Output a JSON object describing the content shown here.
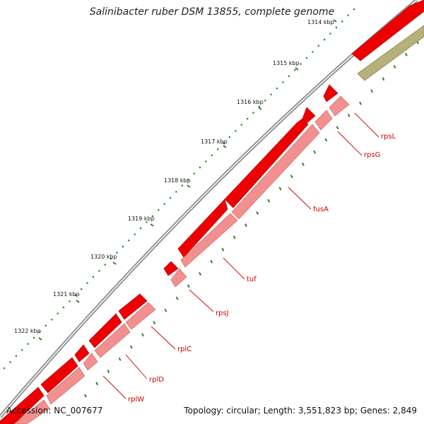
{
  "title": "Salinibacter ruber DSM 13855, complete genome",
  "accession": "Accession: NC_007677",
  "summary": "Topology: circular; Length: 3,551,823 bp; Genes: 2,849",
  "ruler_ticks": [
    "1314 kbp",
    "1315 kbp",
    "1316 kbp",
    "1317 kbp",
    "1318 kbp",
    "1319 kbp",
    "1320 kbp",
    "1321 kbp",
    "1322 kbp"
  ],
  "genes": [
    "rpsL",
    "rpsG",
    "fusA",
    "tuf",
    "rpsJ",
    "rplC",
    "rplD",
    "rplW"
  ],
  "colors": {
    "backbone": "#8a8a8a",
    "cds_forward": "#ee0000",
    "cds_pale": "#f29090",
    "cds_olive": "#b6b07a",
    "ruler_dots": "#1f8a1f",
    "ruler_dashes": "#2f7f2f",
    "gene_label": "#cc0000"
  }
}
